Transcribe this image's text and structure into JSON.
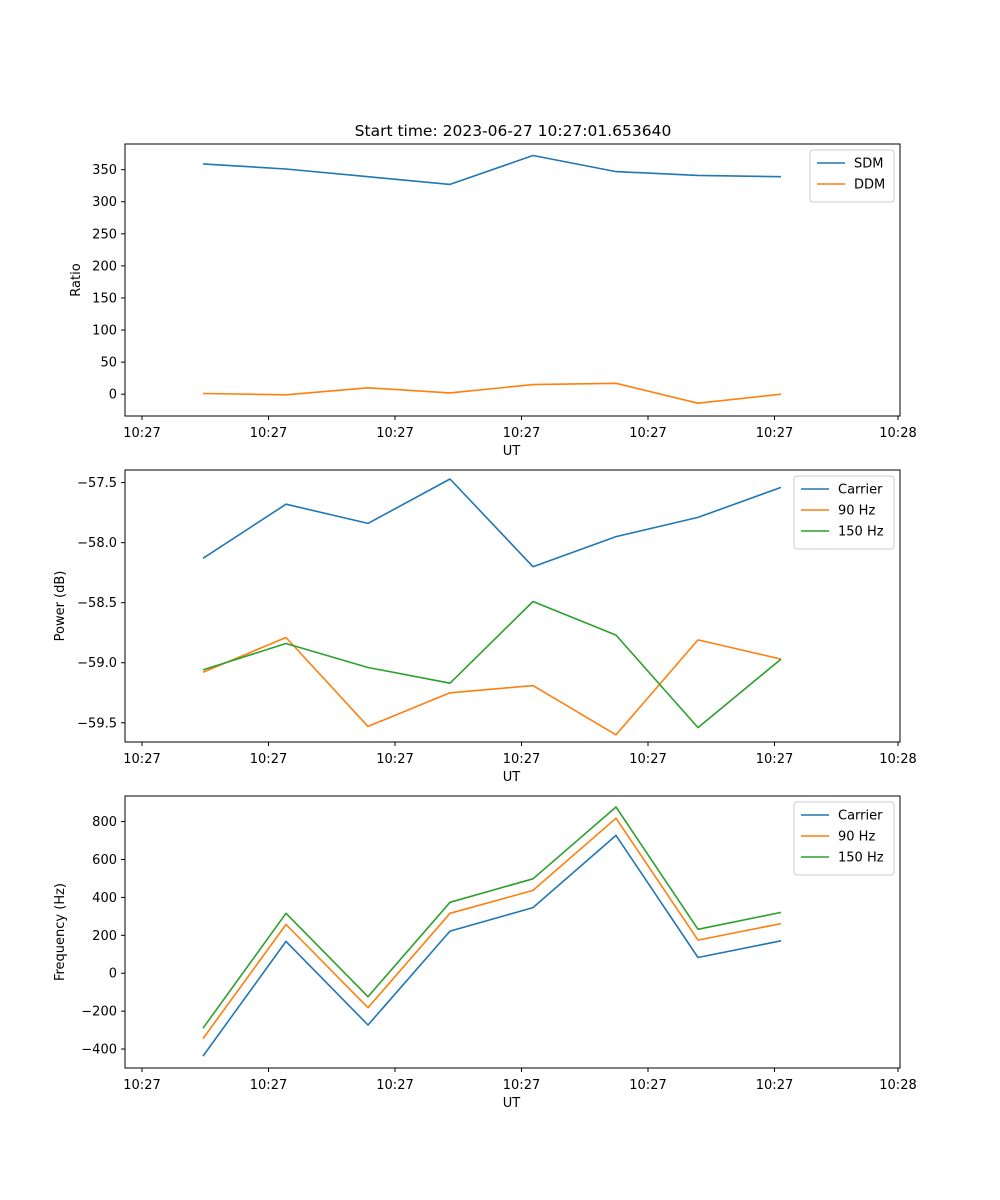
{
  "title": "Start time: 2023-06-27 10:27:01.653640",
  "colors": {
    "blue": "#1f77b4",
    "orange": "#ff7f0e",
    "green": "#2ca02c"
  },
  "chart_data": [
    {
      "type": "line",
      "title": "Start time: 2023-06-27 10:27:01.653640",
      "xlabel": "UT",
      "ylabel": "Ratio",
      "x_tick_labels": [
        "10:27",
        "10:27",
        "10:27",
        "10:27",
        "10:27",
        "10:27",
        "10:28"
      ],
      "yticks": [
        0,
        50,
        100,
        150,
        200,
        250,
        300,
        350
      ],
      "ylim": [
        -34,
        390
      ],
      "grid": false,
      "legend_position": "top-right",
      "series": [
        {
          "name": "SDM",
          "color": "#1f77b4",
          "values": [
            359,
            351,
            339,
            327,
            372,
            347,
            341,
            339
          ]
        },
        {
          "name": "DDM",
          "color": "#ff7f0e",
          "values": [
            1,
            -1,
            10,
            2,
            15,
            17,
            -14,
            0
          ]
        }
      ]
    },
    {
      "type": "line",
      "xlabel": "UT",
      "ylabel": "Power (dB)",
      "x_tick_labels": [
        "10:27",
        "10:27",
        "10:27",
        "10:27",
        "10:27",
        "10:27",
        "10:28"
      ],
      "yticks": [
        -59.5,
        -59.0,
        -58.5,
        -58.0,
        -57.5
      ],
      "ytick_labels": [
        "−59.5",
        "−59.0",
        "−58.5",
        "−58.0",
        "−57.5"
      ],
      "ylim": [
        -59.66,
        -57.395
      ],
      "grid": false,
      "legend_position": "top-right",
      "series": [
        {
          "name": "Carrier",
          "color": "#1f77b4",
          "values": [
            -58.13,
            -57.68,
            -57.84,
            -57.47,
            -58.2,
            -57.95,
            -57.79,
            -57.54
          ]
        },
        {
          "name": "90 Hz",
          "color": "#ff7f0e",
          "values": [
            -59.08,
            -58.79,
            -59.53,
            -59.25,
            -59.19,
            -59.6,
            -58.81,
            -58.97
          ]
        },
        {
          "name": "150 Hz",
          "color": "#2ca02c",
          "values": [
            -59.06,
            -58.84,
            -59.04,
            -59.17,
            -58.49,
            -58.77,
            -59.54,
            -58.97
          ]
        }
      ]
    },
    {
      "type": "line",
      "xlabel": "UT",
      "ylabel": "Frequency (Hz)",
      "x_tick_labels": [
        "10:27",
        "10:27",
        "10:27",
        "10:27",
        "10:27",
        "10:27",
        "10:28"
      ],
      "yticks": [
        -400,
        -200,
        0,
        200,
        400,
        600,
        800
      ],
      "ytick_labels": [
        "−400",
        "−200",
        "0",
        "200",
        "400",
        "600",
        "800"
      ],
      "ylim": [
        -500,
        935
      ],
      "grid": false,
      "legend_position": "top-right",
      "series": [
        {
          "name": "Carrier",
          "color": "#1f77b4",
          "values": [
            -437,
            168,
            -273,
            222,
            346,
            727,
            83,
            171
          ]
        },
        {
          "name": "90 Hz",
          "color": "#ff7f0e",
          "values": [
            -345,
            257,
            -182,
            316,
            437,
            818,
            175,
            262
          ]
        },
        {
          "name": "150 Hz",
          "color": "#2ca02c",
          "values": [
            -290,
            316,
            -124,
            374,
            498,
            877,
            232,
            321
          ]
        }
      ]
    }
  ]
}
